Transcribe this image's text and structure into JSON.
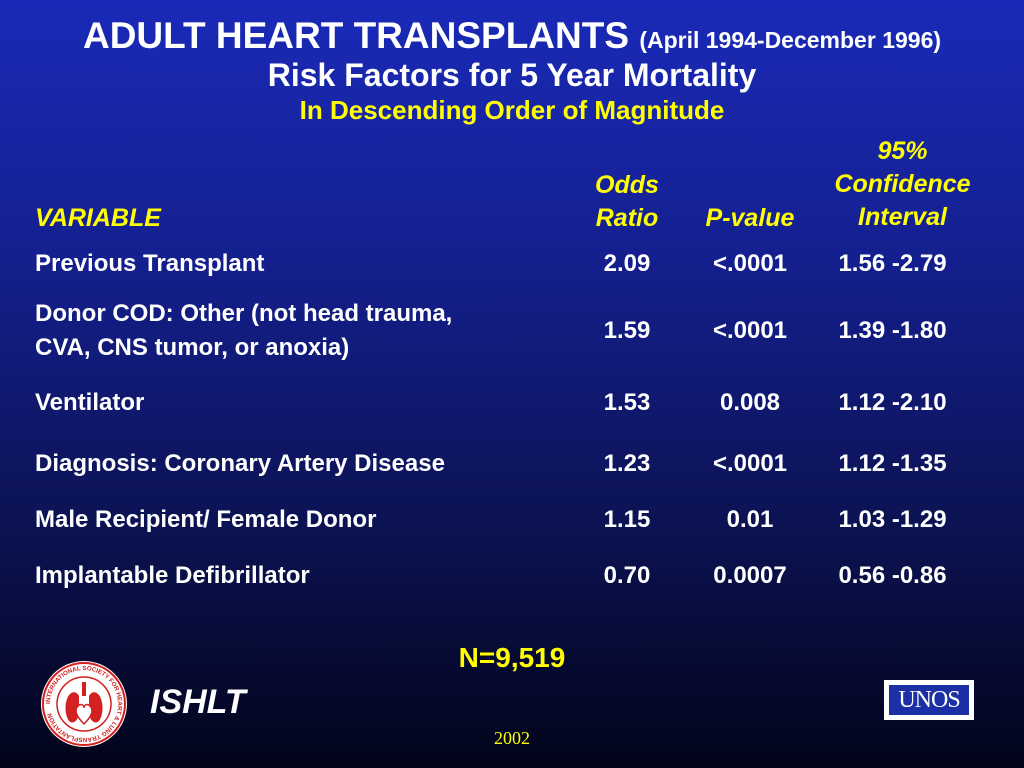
{
  "title": {
    "main": "ADULT HEART TRANSPLANTS",
    "date_range": "(April 1994-December 1996)",
    "subtitle": "Risk Factors for 5 Year Mortality",
    "order_note": "In Descending Order of Magnitude"
  },
  "chart_data": {
    "type": "table",
    "columns": {
      "variable": "VARIABLE",
      "odds_ratio": [
        "Odds",
        "Ratio"
      ],
      "p_value": "P-value",
      "ci": [
        "95%",
        "Confidence",
        "Interval"
      ]
    },
    "rows": [
      {
        "variable": [
          "Previous Transplant"
        ],
        "odds_ratio": "2.09",
        "p_value": "<.0001",
        "ci": "1.56 -2.79"
      },
      {
        "variable": [
          "Donor COD: Other (not head trauma,",
          "CVA, CNS tumor, or anoxia)"
        ],
        "odds_ratio": "1.59",
        "p_value": "<.0001",
        "ci": "1.39 -1.80"
      },
      {
        "variable": [
          "Ventilator"
        ],
        "odds_ratio": "1.53",
        "p_value": "0.008",
        "ci": "1.12 -2.10"
      },
      {
        "variable": [
          "Diagnosis: Coronary Artery Disease"
        ],
        "odds_ratio": "1.23",
        "p_value": "<.0001",
        "ci": "1.12 -1.35"
      },
      {
        "variable": [
          "Male Recipient/ Female Donor"
        ],
        "odds_ratio": "1.15",
        "p_value": "0.01",
        "ci": "1.03 -1.29"
      },
      {
        "variable": [
          "Implantable Defibrillator"
        ],
        "odds_ratio": "0.70",
        "p_value": "0.0007",
        "ci": "0.56 -0.86"
      }
    ],
    "n_label": "N=9,519"
  },
  "footer": {
    "org_name": "ISHLT",
    "year": "2002",
    "unos_logo_text": "UNOS",
    "seal_text": "INTERNATIONAL SOCIETY FOR HEART & LUNG TRANSPLANTATION"
  },
  "colors": {
    "accent": "#ffff00",
    "text": "#ffffff",
    "background_top": "#1a2ab8",
    "background_bottom": "#02041a",
    "logo_red": "#d32020"
  },
  "icons": {
    "ishlt_logo": "heart-lung-seal-icon",
    "unos_logo": "unos-logo-icon"
  }
}
